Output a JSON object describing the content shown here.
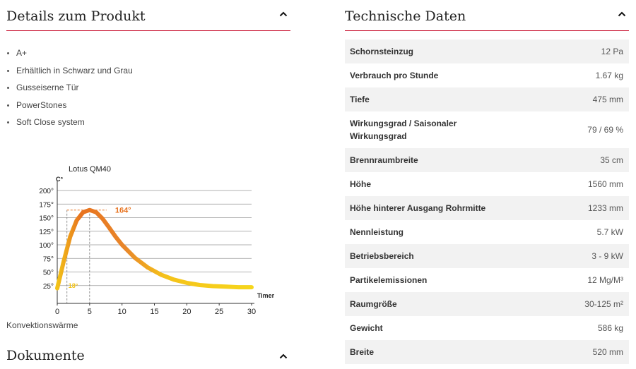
{
  "details": {
    "title": "Details zum Produkt",
    "features": [
      "A+",
      "Erhältlich in Schwarz und Grau",
      "Gusseiserne Tür",
      "PowerStones",
      "Soft Close system"
    ]
  },
  "chart_caption": "Konvektionswärme",
  "documents": {
    "title": "Dokumente"
  },
  "specs": {
    "title": "Technische Daten",
    "rows": [
      {
        "label": "Schornsteinzug",
        "value": "12 Pa"
      },
      {
        "label": "Verbrauch pro Stunde",
        "value": "1.67 kg"
      },
      {
        "label": "Tiefe",
        "value": "475 mm"
      },
      {
        "label": "Wirkungsgrad / Saisonaler Wirkungsgrad",
        "value": "79 / 69 %"
      },
      {
        "label": "Brennraumbreite",
        "value": "35 cm"
      },
      {
        "label": "Höhe",
        "value": "1560 mm"
      },
      {
        "label": "Höhe hinterer Ausgang Rohrmitte",
        "value": "1233 mm"
      },
      {
        "label": "Nennleistung",
        "value": "5.7 kW"
      },
      {
        "label": "Betriebsbereich",
        "value": "3 - 9 kW"
      },
      {
        "label": "Partikelemissionen",
        "value": "12 Mg/M³"
      },
      {
        "label": "Raumgröße",
        "value": "30-125 m²"
      },
      {
        "label": "Gewicht",
        "value": "586 kg"
      },
      {
        "label": "Breite",
        "value": "520 mm"
      }
    ]
  },
  "icons": {
    "collapse": "chevron-up-icon"
  },
  "chart_data": {
    "type": "line",
    "title": "Lotus QM40",
    "ylabel": "C°",
    "xlabel": "Timer",
    "x_ticks": [
      "0",
      "5",
      "10",
      "15",
      "20",
      "25",
      "30"
    ],
    "y_ticks": [
      "25°",
      "50°",
      "75°",
      "100°",
      "125°",
      "150°",
      "175°",
      "200°"
    ],
    "xlim": [
      0,
      30
    ],
    "ylim": [
      0,
      200
    ],
    "x": [
      0,
      1,
      2,
      3,
      4,
      5,
      6,
      7,
      8,
      9,
      10,
      12,
      14,
      16,
      18,
      20,
      22,
      24,
      26,
      28,
      30
    ],
    "values": [
      20,
      70,
      115,
      145,
      160,
      164,
      160,
      148,
      132,
      115,
      100,
      76,
      58,
      45,
      36,
      30,
      26,
      24,
      23,
      22,
      22
    ],
    "peak": {
      "x": 5,
      "y": 164,
      "label": "164°"
    },
    "start": {
      "x": 1.5,
      "y": 18,
      "label": "18°"
    },
    "grid": true
  }
}
